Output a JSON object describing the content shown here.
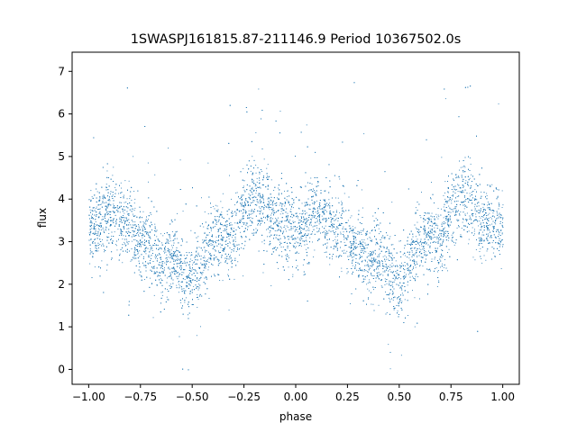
{
  "chart_data": {
    "type": "scatter",
    "title": "1SWASPJ161815.87-211146.9 Period 10367502.0s",
    "xlabel": "phase",
    "ylabel": "flux",
    "xlim": [
      -1.08,
      1.08
    ],
    "ylim": [
      -0.35,
      7.45
    ],
    "xticks": [
      -1.0,
      -0.75,
      -0.5,
      -0.25,
      0.0,
      0.25,
      0.5,
      0.75,
      1.0
    ],
    "xtick_labels": [
      "−1.00",
      "−0.75",
      "−0.50",
      "−0.25",
      "0.00",
      "0.25",
      "0.50",
      "0.75",
      "1.00"
    ],
    "yticks": [
      0,
      1,
      2,
      3,
      4,
      5,
      6,
      7
    ],
    "ytick_labels": [
      "0",
      "1",
      "2",
      "3",
      "4",
      "5",
      "6",
      "7"
    ],
    "grid": false,
    "marker_color": "#1f77b4",
    "periodic": true,
    "series": [
      {
        "phase_profile": [
          [
            0.0,
            3.3
          ],
          [
            0.05,
            3.4
          ],
          [
            0.1,
            3.7
          ],
          [
            0.15,
            3.5
          ],
          [
            0.2,
            3.3
          ],
          [
            0.25,
            3.1
          ],
          [
            0.3,
            2.9
          ],
          [
            0.35,
            2.5
          ],
          [
            0.4,
            2.7
          ],
          [
            0.45,
            2.3
          ],
          [
            0.5,
            2.0
          ],
          [
            0.55,
            2.6
          ],
          [
            0.6,
            3.0
          ],
          [
            0.65,
            3.2
          ],
          [
            0.7,
            3.0
          ],
          [
            0.75,
            3.8
          ],
          [
            0.8,
            4.1
          ],
          [
            0.85,
            3.8
          ],
          [
            0.9,
            3.5
          ],
          [
            0.95,
            3.4
          ],
          [
            1.0,
            3.3
          ]
        ],
        "spread": 0.45,
        "n_points": 9000
      }
    ]
  }
}
